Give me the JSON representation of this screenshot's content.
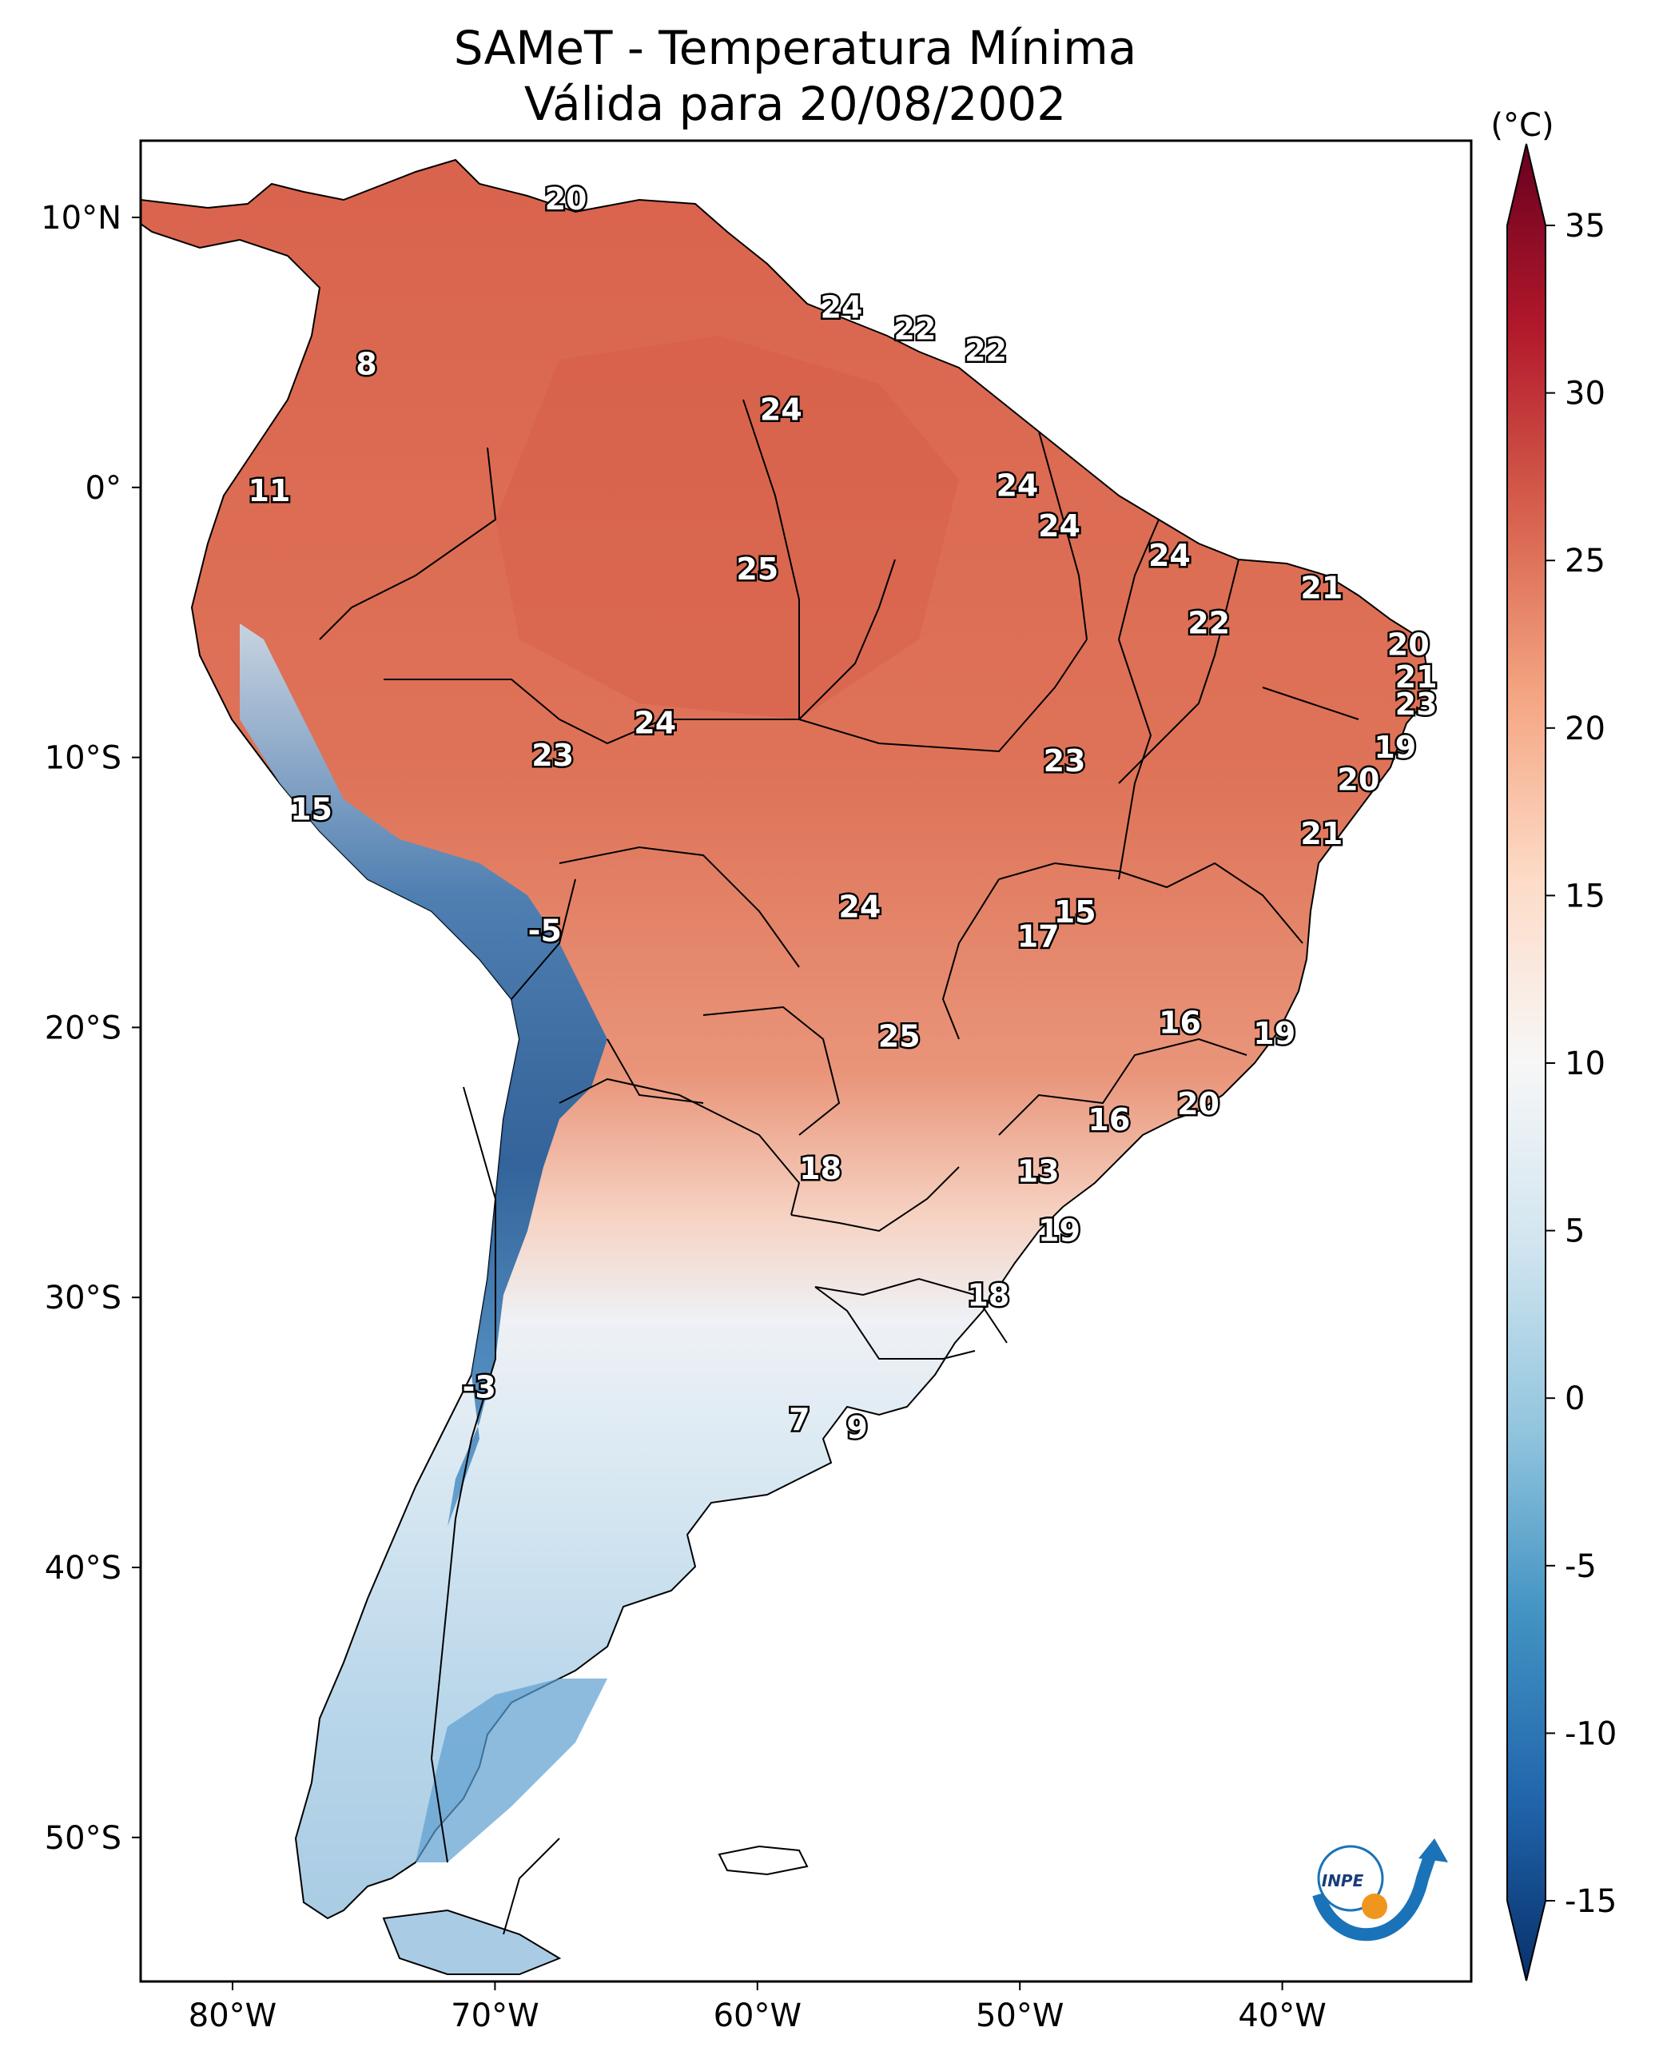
{
  "title": "SAMeT - Temperatura Mínima",
  "subtitle": "Válida para 20/08/2002",
  "colorbar": {
    "unit": "(°C)",
    "ticks": [
      "35",
      "30",
      "25",
      "20",
      "15",
      "10",
      "5",
      "0",
      "-5",
      "-10",
      "-15"
    ],
    "range": [
      -15,
      35
    ],
    "colors_low_to_high": [
      "#08306b",
      "#2166ac",
      "#4393c3",
      "#92c5de",
      "#d1e5f0",
      "#f7f7f7",
      "#fddbc7",
      "#f4a582",
      "#d6604d",
      "#b2182b",
      "#67001f"
    ]
  },
  "axes": {
    "lon_ticks": [
      "80°W",
      "70°W",
      "60°W",
      "50°W",
      "40°W"
    ],
    "lat_ticks": [
      "10°N",
      "0°",
      "10°S",
      "20°S",
      "30°S",
      "40°S",
      "50°S"
    ]
  },
  "station_labels": [
    {
      "lon": -67.3,
      "lat": 10.6,
      "value": "20"
    },
    {
      "lon": -56.8,
      "lat": 6.6,
      "value": "24"
    },
    {
      "lon": -54.0,
      "lat": 5.8,
      "value": "22"
    },
    {
      "lon": -51.3,
      "lat": 5.0,
      "value": "22"
    },
    {
      "lon": -59.1,
      "lat": 2.8,
      "value": "24"
    },
    {
      "lon": -74.9,
      "lat": 4.5,
      "value": "8"
    },
    {
      "lon": -78.6,
      "lat": -0.2,
      "value": "11"
    },
    {
      "lon": -50.1,
      "lat": 0.0,
      "value": "24"
    },
    {
      "lon": -48.5,
      "lat": -1.5,
      "value": "24"
    },
    {
      "lon": -44.3,
      "lat": -2.6,
      "value": "24"
    },
    {
      "lon": -60.0,
      "lat": -3.1,
      "value": "25"
    },
    {
      "lon": -38.5,
      "lat": -3.8,
      "value": "21"
    },
    {
      "lon": -42.8,
      "lat": -5.1,
      "value": "22"
    },
    {
      "lon": -35.2,
      "lat": -5.9,
      "value": "20"
    },
    {
      "lon": -34.9,
      "lat": -7.1,
      "value": "21"
    },
    {
      "lon": -34.9,
      "lat": -8.1,
      "value": "23"
    },
    {
      "lon": -35.7,
      "lat": -9.7,
      "value": "19"
    },
    {
      "lon": -37.1,
      "lat": -10.9,
      "value": "20"
    },
    {
      "lon": -38.5,
      "lat": -12.9,
      "value": "21"
    },
    {
      "lon": -63.9,
      "lat": -8.8,
      "value": "24"
    },
    {
      "lon": -67.8,
      "lat": -10.0,
      "value": "23"
    },
    {
      "lon": -48.3,
      "lat": -10.2,
      "value": "23"
    },
    {
      "lon": -77.0,
      "lat": -12.0,
      "value": "15"
    },
    {
      "lon": -56.1,
      "lat": -15.6,
      "value": "24"
    },
    {
      "lon": -47.9,
      "lat": -15.8,
      "value": "15"
    },
    {
      "lon": -49.3,
      "lat": -16.7,
      "value": "17"
    },
    {
      "lon": -68.1,
      "lat": -16.5,
      "value": "-5"
    },
    {
      "lon": -43.9,
      "lat": -19.9,
      "value": "16"
    },
    {
      "lon": -40.3,
      "lat": -20.3,
      "value": "19"
    },
    {
      "lon": -54.6,
      "lat": -20.4,
      "value": "25"
    },
    {
      "lon": -43.2,
      "lat": -22.9,
      "value": "20"
    },
    {
      "lon": -46.6,
      "lat": -23.5,
      "value": "16"
    },
    {
      "lon": -57.6,
      "lat": -25.3,
      "value": "18"
    },
    {
      "lon": -49.3,
      "lat": -25.4,
      "value": "13"
    },
    {
      "lon": -48.5,
      "lat": -27.6,
      "value": "19"
    },
    {
      "lon": -51.2,
      "lat": -30.0,
      "value": "18"
    },
    {
      "lon": -70.6,
      "lat": -33.4,
      "value": "-3"
    },
    {
      "lon": -58.4,
      "lat": -34.6,
      "value": "7"
    },
    {
      "lon": -56.2,
      "lat": -34.9,
      "value": "9"
    }
  ]
}
